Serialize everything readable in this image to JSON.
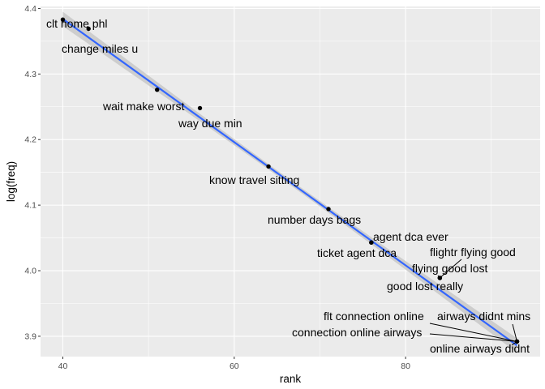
{
  "chart_data": {
    "type": "scatter",
    "title": "",
    "xlabel": "rank",
    "ylabel": "log(freq)",
    "xlim": [
      37.4,
      95.7
    ],
    "ylim": [
      3.869,
      4.403
    ],
    "x_ticks": [
      40,
      60,
      80
    ],
    "x_tick_labels": [
      "40",
      "60",
      "80"
    ],
    "y_ticks": [
      3.9,
      4.0,
      4.1,
      4.2,
      4.3,
      4.4
    ],
    "y_tick_labels": [
      "3.9",
      "4.0",
      "4.1",
      "4.2",
      "4.3",
      "4.4"
    ],
    "grid": true,
    "legend": "none",
    "colors": {
      "panel": "#ebebeb",
      "grid_major": "#ffffff",
      "points": "#000000",
      "fit_line": "#3366ff",
      "confidence_band": "#c8c8c8",
      "segment": "#000000"
    },
    "points": [
      {
        "x": 40,
        "y": 4.383,
        "label": "clt home phl"
      },
      {
        "x": 43,
        "y": 4.369,
        "label": "change miles u"
      },
      {
        "x": 51,
        "y": 4.276,
        "label": "wait make worst"
      },
      {
        "x": 56,
        "y": 4.248,
        "label": "way due min"
      },
      {
        "x": 64,
        "y": 4.159,
        "label": "know travel sitting"
      },
      {
        "x": 71,
        "y": 4.094,
        "label": "number days bags"
      },
      {
        "x": 76,
        "y": 4.043,
        "label": "agent dca ever"
      },
      {
        "x": 76,
        "y": 4.043,
        "label": "ticket agent dca"
      },
      {
        "x": 84,
        "y": 3.989,
        "label": "flightr flying good"
      },
      {
        "x": 84,
        "y": 3.989,
        "label": "flying good lost"
      },
      {
        "x": 84,
        "y": 3.989,
        "label": "good lost really"
      },
      {
        "x": 93,
        "y": 3.892,
        "label": "flt connection online"
      },
      {
        "x": 93,
        "y": 3.892,
        "label": "airways didnt mins"
      },
      {
        "x": 93,
        "y": 3.892,
        "label": "connection online airways"
      },
      {
        "x": 93,
        "y": 3.892,
        "label": "online airways didnt"
      }
    ],
    "fit": {
      "method": "linear",
      "x_range": [
        40,
        93
      ],
      "y_start": 4.384,
      "y_end": 3.886,
      "band_halfwidth_ends": 0.011,
      "band_halfwidth_mid": 0.004
    }
  }
}
